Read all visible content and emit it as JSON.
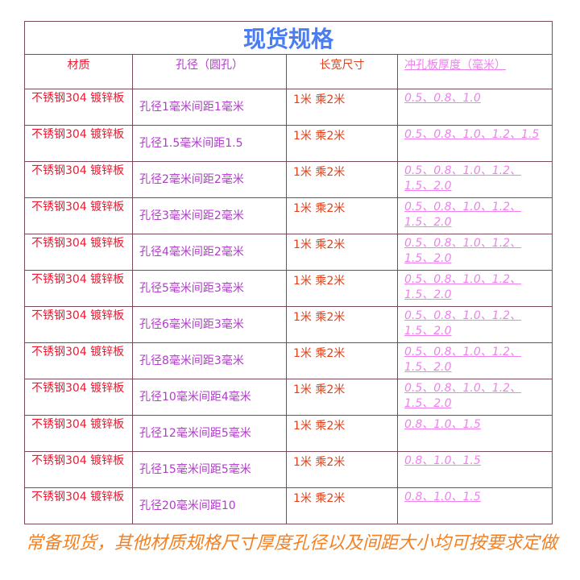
{
  "title": "现货规格",
  "headers": [
    "材质",
    "孔径（圆孔）",
    "长宽尺寸",
    "冲孔板厚度（毫米）"
  ],
  "colors": {
    "title": "#4a7df0",
    "material": "#f01830",
    "hole": "#b03cc8",
    "size": "#e0401a",
    "thickness": "#f07ff0",
    "note": "#f58020",
    "border": "#7a4a5e"
  },
  "rows": [
    {
      "material": "不锈钢304 镀锌板",
      "hole": "孔径1毫米间距1毫米",
      "size": "1米  乘2米",
      "thickness": "0.5、0.8、1.0"
    },
    {
      "material": "不锈钢304 镀锌板",
      "hole": "孔径1.5毫米间距1.5",
      "size": "1米  乘2米",
      "thickness": "0.5、0.8、1.0、1.2、1.5"
    },
    {
      "material": "不锈钢304 镀锌板",
      "hole": "孔径2毫米间距2毫米",
      "size": "1米  乘2米",
      "thickness": "0.5、0.8、1.0、1.2、1.5、2.0"
    },
    {
      "material": "不锈钢304 镀锌板",
      "hole": "孔径3毫米间距2毫米",
      "size": "1米  乘2米",
      "thickness": "0.5、0.8、1.0、1.2、1.5、2.0"
    },
    {
      "material": "不锈钢304 镀锌板",
      "hole": "孔径4毫米间距2毫米",
      "size": "1米  乘2米",
      "thickness": "0.5、0.8、1.0、1.2、1.5、2.0"
    },
    {
      "material": "不锈钢304 镀锌板",
      "hole": "孔径5毫米间距3毫米",
      "size": "1米  乘2米",
      "thickness": "0.5、0.8、1.0、1.2、1.5、2.0"
    },
    {
      "material": "不锈钢304 镀锌板",
      "hole": "孔径6毫米间距3毫米",
      "size": "1米  乘2米",
      "thickness": "0.5、0.8、1.0、1.2、1.5、2.0"
    },
    {
      "material": "不锈钢304 镀锌板",
      "hole": "孔径8毫米间距3毫米",
      "size": "1米  乘2米",
      "thickness": "0.5、0.8、1.0、1.2、1.5、2.0"
    },
    {
      "material": "不锈钢304 镀锌板",
      "hole": "孔径10毫米间距4毫米",
      "size": "1米  乘2米",
      "thickness": "0.5、0.8、1.0、1.2、1.5、2.0"
    },
    {
      "material": "不锈钢304 镀锌板",
      "hole": "孔径12毫米间距5毫米",
      "size": "1米  乘2米",
      "thickness": "0.8、1.0、1.5"
    },
    {
      "material": "不锈钢304 镀锌板",
      "hole": "孔径15毫米间距5毫米",
      "size": "1米  乘2米",
      "thickness": "0.8、1.0、1.5"
    },
    {
      "material": "不锈钢304 镀锌板",
      "hole": "孔径20毫米间距10",
      "size": "1米  乘2米",
      "thickness": "0.8、1.0、1.5"
    }
  ],
  "note": "常备现货，其他材质规格尺寸厚度孔径以及间距大小均可按要求定做"
}
